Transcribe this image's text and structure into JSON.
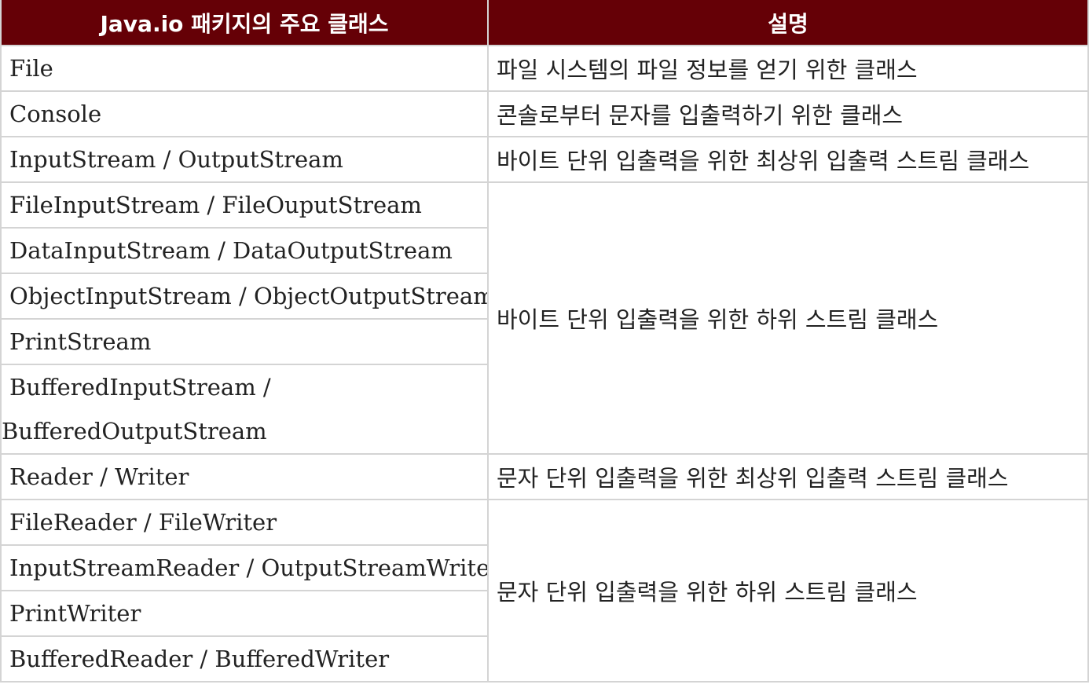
{
  "table": {
    "header": {
      "col1": "Java.io 패키지의 주요 클래스",
      "col2": "설명"
    },
    "rows": {
      "file": {
        "cls": "File",
        "desc": "파일 시스템의 파일 정보를 얻기 위한 클래스"
      },
      "console": {
        "cls": "Console",
        "desc": "콘솔로부터 문자를 입출력하기 위한 클래스"
      },
      "inputstream": {
        "cls": "InputStream / OutputStream",
        "desc": "바이트 단위 입출력을 위한 최상위 입출력 스트림 클래스"
      },
      "fileinputstream": {
        "cls": "FileInputStream / FileOuputStream"
      },
      "datainputstream": {
        "cls": "DataInputStream / DataOutputStream"
      },
      "objectinputstream": {
        "cls": "ObjectInputStream / ObjectOutputStream"
      },
      "printstream": {
        "cls": "PrintStream"
      },
      "bufferedinputstream": {
        "cls": "BufferedInputStream / BufferedOutputStream"
      },
      "byte_sub_desc": "바이트 단위 입출력을 위한 하위 스트림 클래스",
      "reader": {
        "cls": "Reader / Writer",
        "desc": "문자 단위 입출력을 위한 최상위 입출력 스트림 클래스"
      },
      "filereader": {
        "cls": "FileReader / FileWriter"
      },
      "inputstreamreader": {
        "cls": "InputStreamReader / OutputStreamWriter"
      },
      "printwriter": {
        "cls": "PrintWriter"
      },
      "bufferedreader": {
        "cls": "BufferedReader / BufferedWriter"
      },
      "char_sub_desc": "문자 단위 입출력을 위한 하위 스트림 클래스"
    }
  },
  "colors": {
    "header_bg": "#650006",
    "header_text": "#ffffff",
    "border": "#d4d4d4"
  }
}
